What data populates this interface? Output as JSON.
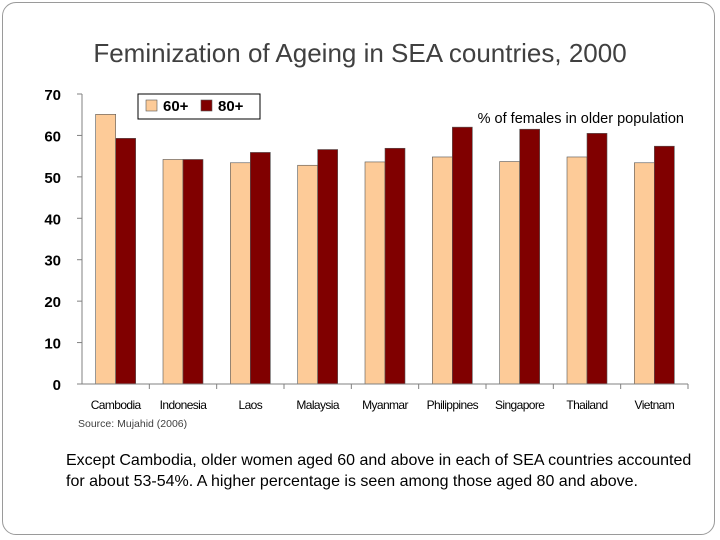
{
  "slide": {
    "title": "Feminization of Ageing in SEA countries, 2000",
    "source": "Source: Mujahid (2006)",
    "caption": "Except Cambodia, older women aged 60 and above in each of SEA countries accounted for about 53-54%. A higher percentage is seen among those aged 80 and above."
  },
  "chart_data": {
    "type": "bar",
    "title": "",
    "annotation": "% of females in older population",
    "categories": [
      "Cambodia",
      "Indonesia",
      "Laos",
      "Malaysia",
      "Myanmar",
      "Philippines",
      "Singapore",
      "Thailand",
      "Vietnam"
    ],
    "series": [
      {
        "name": "60+",
        "color": "#fdcb98",
        "values": [
          65.1,
          54.2,
          53.4,
          52.8,
          53.6,
          54.8,
          53.7,
          54.8,
          53.4
        ]
      },
      {
        "name": "80+",
        "color": "#800000",
        "values": [
          59.3,
          54.2,
          55.9,
          56.6,
          56.9,
          62.0,
          61.5,
          60.5,
          57.4
        ]
      }
    ],
    "ylim": [
      0,
      70
    ],
    "yticks": [
      0,
      10,
      20,
      30,
      40,
      50,
      60,
      70
    ],
    "xlabel": "",
    "ylabel": "",
    "grid": false,
    "legend_position": "top-left"
  }
}
